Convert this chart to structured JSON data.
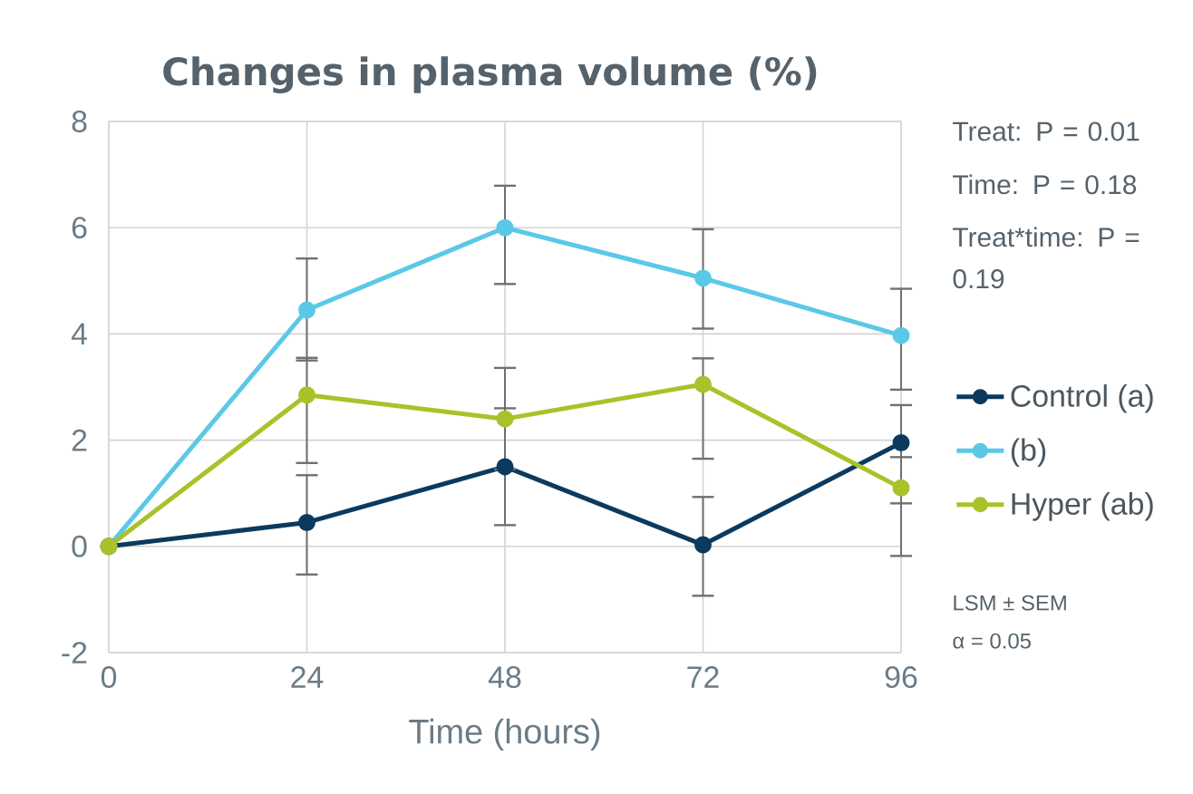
{
  "chart_data": {
    "type": "line",
    "title": "Changes in plasma volume (%)",
    "xlabel": "Time (hours)",
    "x": [
      0,
      24,
      48,
      72,
      96
    ],
    "series": [
      {
        "name": "Control (a)",
        "color": "#0b3a5e",
        "values": [
          0,
          0.45,
          1.5,
          0.03,
          1.95
        ],
        "errors": [
          null,
          [
            -0.53,
            1.34
          ],
          [
            0.4,
            2.6
          ],
          [
            -0.93,
            0.93
          ],
          [
            -0.18,
            2.66
          ]
        ]
      },
      {
        "name": "(b)",
        "color": "#5bc8e6",
        "values": [
          0,
          4.45,
          6.0,
          5.05,
          3.97
        ],
        "errors": [
          null,
          [
            3.5,
            5.42
          ],
          [
            4.94,
            6.79
          ],
          [
            4.1,
            5.97
          ],
          [
            2.95,
            4.85
          ]
        ]
      },
      {
        "name": "Hyper  (ab)",
        "color": "#a9c22a",
        "values": [
          0,
          2.85,
          2.4,
          3.05,
          1.1
        ],
        "errors": [
          null,
          [
            1.57,
            3.55
          ],
          [
            1.45,
            3.36
          ],
          [
            1.65,
            3.54
          ],
          [
            0.81,
            1.68
          ]
        ]
      }
    ],
    "xlim": [
      0,
      96
    ],
    "xticks": [
      0,
      24,
      48,
      72,
      96
    ],
    "ylim": [
      -2,
      8
    ],
    "yticks": [
      -2,
      0,
      2,
      4,
      6,
      8
    ],
    "grid": true,
    "legend": "right",
    "marker": "circle",
    "line_style": "solid",
    "annotations": [
      "Treat: P = 0.01",
      "Time: P  = 0.18",
      "Treat*time: P = 0.19",
      "LSM ± SEM",
      "α = 0.05"
    ]
  }
}
